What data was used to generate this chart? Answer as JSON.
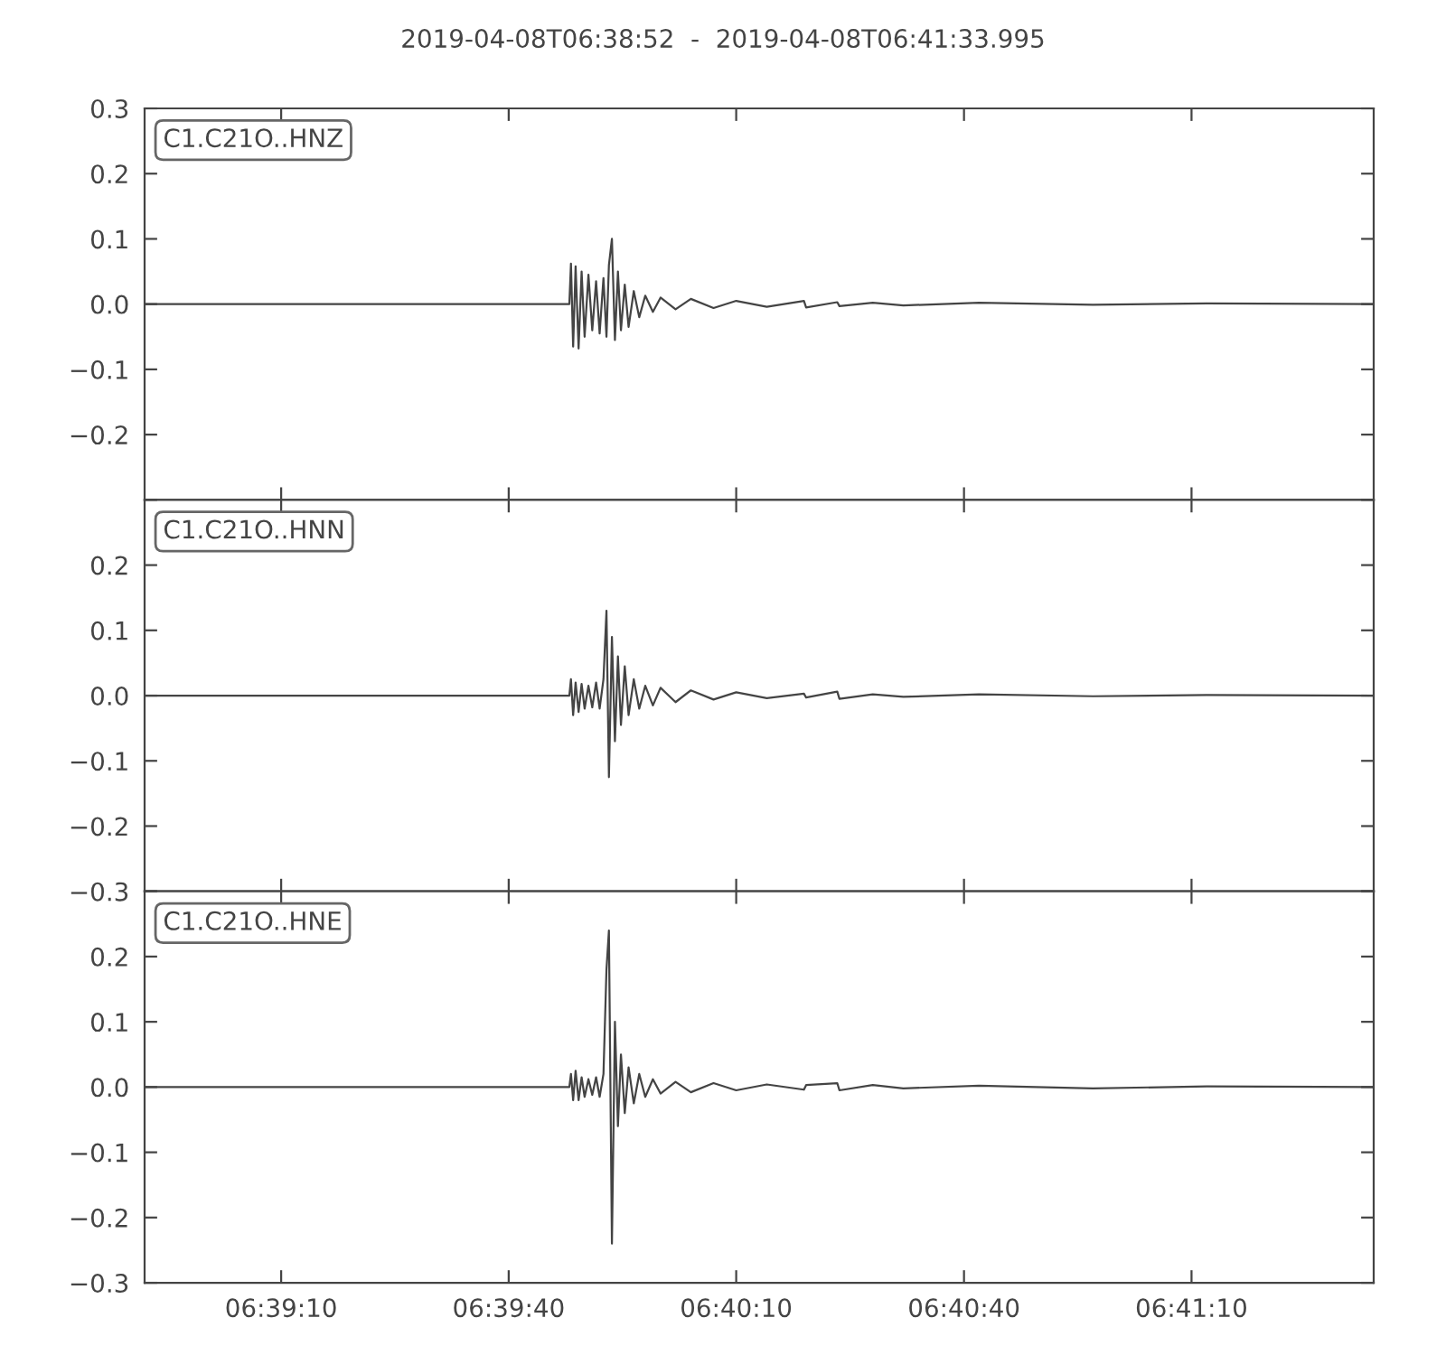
{
  "chart_data": [
    {
      "type": "line",
      "title": "2019-04-08T06:38:52  -  2019-04-08T06:41:33.995",
      "tick_labels": "y",
      "line_style": "solid",
      "x": [
        6.64778,
        6.66333,
        6.66339,
        6.66347,
        6.66356,
        6.66367,
        6.66378,
        6.66389,
        6.66403,
        6.66417,
        6.66431,
        6.66444,
        6.66458,
        6.66469,
        6.66478,
        6.66489,
        6.665,
        6.66511,
        6.66522,
        6.66536,
        6.6655,
        6.66569,
        6.66589,
        6.66611,
        6.66639,
        6.66667,
        6.66722,
        6.66778,
        6.66861,
        6.66944,
        6.67056,
        6.67192,
        6.672,
        6.67314,
        6.67322,
        6.67444,
        6.67556,
        6.67833,
        6.6825,
        6.68667,
        6.69278
      ],
      "series": [
        {
          "name": "C1.C21O..HNZ",
          "color": "#444444",
          "values": [
            0,
            0,
            0.062,
            -0.065,
            0.058,
            -0.068,
            0.05,
            -0.05,
            0.045,
            -0.04,
            0.035,
            -0.045,
            0.04,
            -0.05,
            0.06,
            0.1,
            -0.055,
            0.05,
            -0.04,
            0.03,
            -0.035,
            0.02,
            -0.02,
            0.013,
            -0.012,
            0.01,
            -0.008,
            0.008,
            -0.006,
            0.005,
            -0.004,
            0.005,
            -0.005,
            0.003,
            -0.003,
            0.002,
            -0.002,
            0.002,
            -0.001,
            0.001,
            0
          ]
        }
      ],
      "xlim": [
        6.64778,
        6.69278
      ],
      "xticks": [
        {
          "value": 6.65278,
          "label": null
        },
        {
          "value": 6.66111,
          "label": null
        },
        {
          "value": 6.66944,
          "label": null
        },
        {
          "value": 6.67778,
          "label": null
        },
        {
          "value": 6.68611,
          "label": null
        }
      ],
      "ylim": [
        -0.3,
        0.3
      ],
      "yticks": [
        {
          "value": -0.3,
          "label": null
        },
        {
          "value": -0.2,
          "label": "−0.2"
        },
        {
          "value": -0.1,
          "label": "−0.1"
        },
        {
          "value": 0,
          "label": "0.0"
        },
        0.1,
        0.2,
        0.3
      ]
    },
    {
      "type": "line",
      "tick_labels": "y",
      "line_style": "solid",
      "x": [
        6.64778,
        6.66333,
        6.66339,
        6.66347,
        6.66356,
        6.66367,
        6.66378,
        6.66389,
        6.66403,
        6.66417,
        6.66431,
        6.66444,
        6.66458,
        6.66469,
        6.66478,
        6.66489,
        6.665,
        6.66511,
        6.66522,
        6.66536,
        6.6655,
        6.66569,
        6.66589,
        6.66611,
        6.66639,
        6.66667,
        6.66722,
        6.66778,
        6.66861,
        6.66944,
        6.67056,
        6.67192,
        6.672,
        6.67314,
        6.67322,
        6.67444,
        6.67556,
        6.67833,
        6.6825,
        6.68667,
        6.69278
      ],
      "series": [
        {
          "name": "C1.C21O..HNN",
          "color": "#444444",
          "values": [
            0,
            0,
            0.025,
            -0.03,
            0.02,
            -0.025,
            0.018,
            -0.02,
            0.015,
            -0.018,
            0.02,
            -0.02,
            0.025,
            0.13,
            -0.125,
            0.09,
            -0.07,
            0.06,
            -0.045,
            0.045,
            -0.03,
            0.025,
            -0.02,
            0.015,
            -0.015,
            0.012,
            -0.01,
            0.008,
            -0.006,
            0.005,
            -0.004,
            0.003,
            -0.003,
            0.006,
            -0.005,
            0.002,
            -0.002,
            0.002,
            -0.001,
            0.001,
            0
          ]
        }
      ],
      "xlim": [
        6.64778,
        6.69278
      ],
      "xticks": [
        {
          "value": 6.65278,
          "label": null
        },
        {
          "value": 6.66111,
          "label": null
        },
        {
          "value": 6.66944,
          "label": null
        },
        {
          "value": 6.67778,
          "label": null
        },
        {
          "value": 6.68611,
          "label": null
        }
      ],
      "ylim": [
        -0.3,
        0.3
      ],
      "yticks": [
        {
          "value": -0.3,
          "label": "−0.3"
        },
        {
          "value": -0.2,
          "label": "−0.2"
        },
        {
          "value": -0.1,
          "label": "−0.1"
        },
        {
          "value": 0,
          "label": "0.0"
        },
        0.1,
        0.2,
        {
          "value": 0.3,
          "label": null
        }
      ]
    },
    {
      "type": "line",
      "line_style": "solid",
      "x": [
        6.64778,
        6.66333,
        6.66339,
        6.66347,
        6.66356,
        6.66367,
        6.66378,
        6.66389,
        6.66403,
        6.66417,
        6.66431,
        6.66444,
        6.66458,
        6.66469,
        6.66478,
        6.66489,
        6.665,
        6.66511,
        6.66522,
        6.66536,
        6.6655,
        6.66569,
        6.66589,
        6.66611,
        6.66639,
        6.66667,
        6.66722,
        6.66778,
        6.66861,
        6.66944,
        6.67056,
        6.67192,
        6.672,
        6.67314,
        6.67322,
        6.67444,
        6.67556,
        6.67833,
        6.6825,
        6.68667,
        6.69278
      ],
      "series": [
        {
          "name": "C1.C21O..HNE",
          "color": "#444444",
          "values": [
            0,
            0,
            0.02,
            -0.02,
            0.025,
            -0.02,
            0.015,
            -0.015,
            0.012,
            -0.012,
            0.015,
            -0.015,
            0.02,
            0.18,
            0.24,
            -0.24,
            0.1,
            -0.06,
            0.05,
            -0.04,
            0.03,
            -0.025,
            0.02,
            -0.015,
            0.012,
            -0.01,
            0.008,
            -0.008,
            0.006,
            -0.005,
            0.004,
            -0.004,
            0.003,
            0.006,
            -0.005,
            0.003,
            -0.002,
            0.002,
            -0.002,
            0.001,
            0
          ]
        }
      ],
      "xlim": [
        6.64778,
        6.69278
      ],
      "xticks": [
        {
          "value": 6.65278,
          "label": "06:39:10"
        },
        {
          "value": 6.66111,
          "label": "06:39:40"
        },
        {
          "value": 6.66944,
          "label": "06:40:10"
        },
        {
          "value": 6.67778,
          "label": "06:40:40"
        },
        {
          "value": 6.68611,
          "label": "06:41:10"
        }
      ],
      "ylim": [
        -0.3,
        0.3
      ],
      "yticks": [
        {
          "value": -0.3,
          "label": "−0.3"
        },
        {
          "value": -0.2,
          "label": "−0.2"
        },
        {
          "value": -0.1,
          "label": "−0.1"
        },
        {
          "value": 0,
          "label": "0.0"
        },
        0.1,
        0.2,
        {
          "value": 0.3,
          "label": null
        }
      ]
    }
  ]
}
